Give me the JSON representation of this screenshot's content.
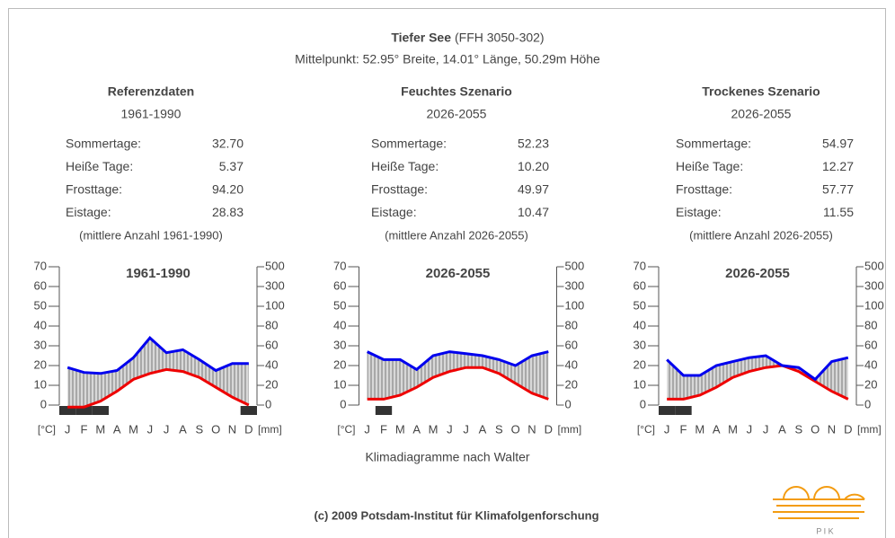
{
  "header": {
    "title": "Tiefer See",
    "code": "(FFH 3050-302)",
    "subtitle": "Mittelpunkt: 52.95° Breite, 14.01° Länge, 50.29m Höhe"
  },
  "panels": [
    {
      "heading": "Referenzdaten",
      "period": "1961-1990",
      "stats": [
        {
          "label": "Sommertage:",
          "value": "32.70"
        },
        {
          "label": "Heiße Tage:",
          "value": "5.37"
        },
        {
          "label": "Frosttage:",
          "value": "94.20"
        },
        {
          "label": "Eistage:",
          "value": "28.83"
        }
      ],
      "note": "(mittlere Anzahl 1961-1990)"
    },
    {
      "heading": "Feuchtes Szenario",
      "period": "2026-2055",
      "stats": [
        {
          "label": "Sommertage:",
          "value": "52.23"
        },
        {
          "label": "Heiße Tage:",
          "value": "10.20"
        },
        {
          "label": "Frosttage:",
          "value": "49.97"
        },
        {
          "label": "Eistage:",
          "value": "10.47"
        }
      ],
      "note": "(mittlere Anzahl 2026-2055)"
    },
    {
      "heading": "Trockenes Szenario",
      "period": "2026-2055",
      "stats": [
        {
          "label": "Sommertage:",
          "value": "54.97"
        },
        {
          "label": "Heiße Tage:",
          "value": "12.27"
        },
        {
          "label": "Frosttage:",
          "value": "57.77"
        },
        {
          "label": "Eistage:",
          "value": "11.55"
        }
      ],
      "note": "(mittlere Anzahl 2026-2055)"
    }
  ],
  "chart_data": [
    {
      "type": "walter",
      "title": "1961-1990",
      "x_label": "[°C]",
      "y2_label": "[mm]",
      "categories": [
        "J",
        "F",
        "M",
        "A",
        "M",
        "J",
        "J",
        "A",
        "S",
        "O",
        "N",
        "D"
      ],
      "series": [
        {
          "color": "#ee0000",
          "values": [
            -1,
            -1,
            2,
            7,
            13,
            16,
            18,
            17,
            14,
            9,
            4,
            0
          ]
        },
        {
          "color": "#0000ee",
          "axis": "y2",
          "values": [
            38,
            33,
            32,
            35,
            48,
            68,
            53,
            56,
            46,
            35,
            42,
            42
          ]
        }
      ],
      "frost": [
        true,
        true,
        true,
        false,
        false,
        false,
        false,
        false,
        false,
        false,
        false,
        true
      ],
      "ylim": [
        0,
        70
      ],
      "yticks": [
        0,
        10,
        20,
        30,
        40,
        50,
        60,
        70
      ],
      "y2lim": [
        0,
        500
      ],
      "y2ticks": [
        0,
        20,
        40,
        60,
        80,
        100,
        300,
        500
      ]
    },
    {
      "type": "walter",
      "title": "2026-2055",
      "x_label": "[°C]",
      "y2_label": "[mm]",
      "categories": [
        "J",
        "F",
        "M",
        "A",
        "M",
        "J",
        "J",
        "A",
        "S",
        "O",
        "N",
        "D"
      ],
      "series": [
        {
          "color": "#ee0000",
          "values": [
            3,
            3,
            5,
            9,
            14,
            17,
            19,
            19,
            16,
            11,
            6,
            3
          ]
        },
        {
          "color": "#0000ee",
          "axis": "y2",
          "values": [
            54,
            46,
            46,
            36,
            50,
            54,
            52,
            50,
            46,
            40,
            50,
            54
          ]
        }
      ],
      "frost": [
        false,
        true,
        false,
        false,
        false,
        false,
        false,
        false,
        false,
        false,
        false,
        false
      ],
      "ylim": [
        0,
        70
      ],
      "yticks": [
        0,
        10,
        20,
        30,
        40,
        50,
        60,
        70
      ],
      "y2lim": [
        0,
        500
      ],
      "y2ticks": [
        0,
        20,
        40,
        60,
        80,
        100,
        300,
        500
      ]
    },
    {
      "type": "walter",
      "title": "2026-2055",
      "x_label": "[°C]",
      "y2_label": "[mm]",
      "categories": [
        "J",
        "F",
        "M",
        "A",
        "M",
        "J",
        "J",
        "A",
        "S",
        "O",
        "N",
        "D"
      ],
      "series": [
        {
          "color": "#ee0000",
          "values": [
            3,
            3,
            5,
            9,
            14,
            17,
            19,
            20,
            17,
            12,
            7,
            3
          ]
        },
        {
          "color": "#0000ee",
          "axis": "y2",
          "values": [
            46,
            30,
            30,
            40,
            44,
            48,
            50,
            40,
            38,
            26,
            44,
            48
          ]
        }
      ],
      "frost": [
        true,
        true,
        false,
        false,
        false,
        false,
        false,
        false,
        false,
        false,
        false,
        false
      ],
      "ylim": [
        0,
        70
      ],
      "yticks": [
        0,
        10,
        20,
        30,
        40,
        50,
        60,
        70
      ],
      "y2lim": [
        0,
        500
      ],
      "y2ticks": [
        0,
        20,
        40,
        60,
        80,
        100,
        300,
        500
      ]
    }
  ],
  "caption": "Klimadiagramme nach Walter",
  "copyright": "(c) 2009 Potsdam-Institut für Klimafolgenforschung",
  "logo_text": "P I K"
}
